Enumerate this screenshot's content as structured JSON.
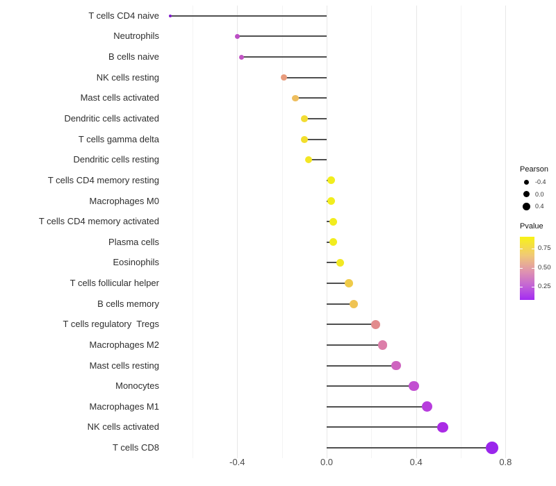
{
  "figure": {
    "background": "#ffffff"
  },
  "chart_data": {
    "type": "scatter",
    "subtype": "horizontal-lollipop",
    "title": "",
    "xlabel": "",
    "ylabel": "",
    "x_axis": {
      "range": [
        -0.725,
        0.83
      ],
      "ticks": [
        -0.4,
        0.0,
        0.4,
        0.8
      ],
      "tick_labels": [
        "-0.4",
        "0.0",
        "0.4",
        "0.8"
      ],
      "minor_ticks": [
        -0.6,
        -0.2,
        0.2,
        0.6
      ],
      "grid": true
    },
    "points": [
      {
        "label": "T cells CD4 naive",
        "pearson": -0.7,
        "pvalue": 0.03,
        "color": "#7D17C9"
      },
      {
        "label": "Neutrophils",
        "pearson": -0.4,
        "pvalue": 0.22,
        "color": "#BC4EC5"
      },
      {
        "label": "B cells naive",
        "pearson": -0.38,
        "pvalue": 0.25,
        "color": "#C254C4"
      },
      {
        "label": "NK cells resting",
        "pearson": -0.19,
        "pvalue": 0.55,
        "color": "#E89B7C"
      },
      {
        "label": "Mast cells activated",
        "pearson": -0.14,
        "pvalue": 0.65,
        "color": "#EEBE5E"
      },
      {
        "label": "Dendritic cells activated",
        "pearson": -0.1,
        "pvalue": 0.78,
        "color": "#F2DC33"
      },
      {
        "label": "T cells gamma delta",
        "pearson": -0.1,
        "pvalue": 0.8,
        "color": "#F2DE2C"
      },
      {
        "label": "Dendritic cells resting",
        "pearson": -0.08,
        "pvalue": 0.85,
        "color": "#F3E624"
      },
      {
        "label": "T cells CD4 memory resting",
        "pearson": 0.02,
        "pvalue": 0.92,
        "color": "#F1ED1E"
      },
      {
        "label": "Macrophages M0",
        "pearson": 0.02,
        "pvalue": 0.92,
        "color": "#F1ED1E"
      },
      {
        "label": "T cells CD4 memory activated",
        "pearson": 0.03,
        "pvalue": 0.9,
        "color": "#F1EC1F"
      },
      {
        "label": "Plasma cells",
        "pearson": 0.03,
        "pvalue": 0.9,
        "color": "#F1EC1F"
      },
      {
        "label": "Eosinophils",
        "pearson": 0.06,
        "pvalue": 0.86,
        "color": "#F2E822"
      },
      {
        "label": "T cells follicular helper",
        "pearson": 0.1,
        "pvalue": 0.7,
        "color": "#EFCB49"
      },
      {
        "label": "B cells memory",
        "pearson": 0.12,
        "pvalue": 0.66,
        "color": "#EFC353"
      },
      {
        "label": "T cells regulatory  Tregs",
        "pearson": 0.22,
        "pvalue": 0.47,
        "color": "#E28B8D"
      },
      {
        "label": "Macrophages M2",
        "pearson": 0.25,
        "pvalue": 0.41,
        "color": "#DC7EA9"
      },
      {
        "label": "Mast cells resting",
        "pearson": 0.31,
        "pvalue": 0.31,
        "color": "#CE63BF"
      },
      {
        "label": "Monocytes",
        "pearson": 0.39,
        "pvalue": 0.22,
        "color": "#C24FD1"
      },
      {
        "label": "Macrophages M1",
        "pearson": 0.45,
        "pvalue": 0.16,
        "color": "#B73CDD"
      },
      {
        "label": "NK cells activated",
        "pearson": 0.52,
        "pvalue": 0.09,
        "color": "#AA2BE5"
      },
      {
        "label": "T cells CD8",
        "pearson": 0.74,
        "pvalue": 0.01,
        "color": "#9A26EC"
      }
    ],
    "legend": {
      "size": {
        "title": "Pearson",
        "dot_color": "#000000",
        "entries": [
          {
            "label": "-0.4",
            "value": -0.4
          },
          {
            "label": "0.0",
            "value": 0.0
          },
          {
            "label": "0.4",
            "value": 0.4
          }
        ]
      },
      "color": {
        "title": "Pvalue",
        "tick_labels": [
          "0.75",
          "0.50",
          "0.25"
        ],
        "tick_positions_pct": [
          19,
          49,
          79
        ],
        "gradient_stops": [
          "#F8F316",
          "#F0C878",
          "#DF93AF",
          "#C263D6",
          "#A32BF2"
        ]
      },
      "position": "right"
    },
    "style": {
      "stem_color": "#4f4f4f",
      "grid_major_color": "#e7e7e7",
      "grid_minor_color": "#f4f4f4",
      "axis_text_color": "#4a4a4a",
      "label_text_color": "#2e2e2e"
    }
  }
}
